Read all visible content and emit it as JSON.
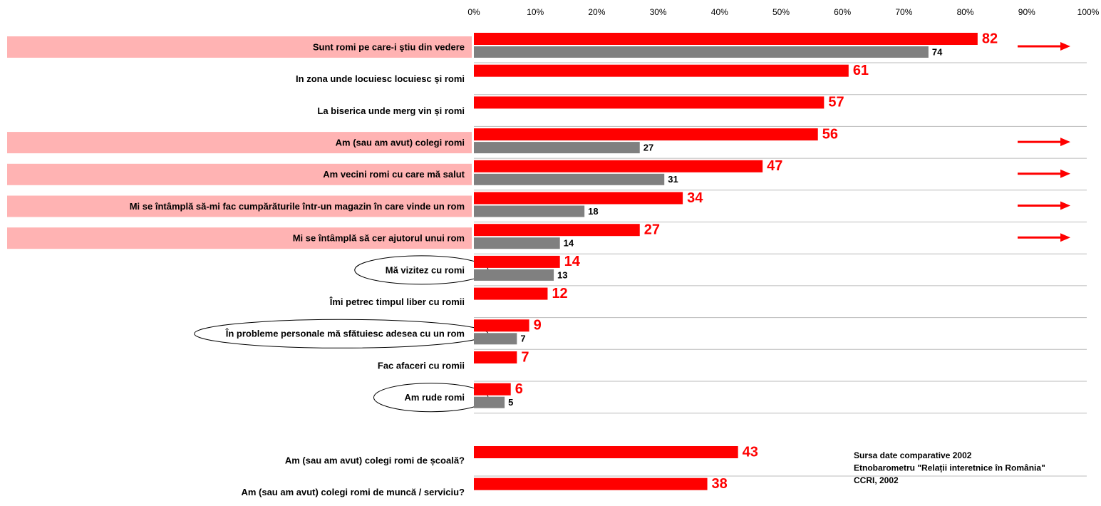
{
  "chart_data": [
    {
      "type": "bar",
      "categories": [
        "Sunt romi pe care-i ştiu din vedere",
        "In zona unde locuiesc locuiesc și romi",
        "La biserica unde merg vin și romi",
        "Am (sau am avut) colegi romi",
        "Am vecini romi cu care mă salut",
        "Mi se întâmplă să-mi fac cumpărăturile într-un magazin în care vinde un rom",
        "Mi se întâmplă să cer ajutorul unui rom",
        "Mă vizitez cu romi",
        "Îmi petrec timpul liber cu romii",
        "În probleme personale mă sfătuiesc adesea cu un rom",
        "Fac afaceri cu romii",
        "Am rude romi"
      ],
      "series": [
        {
          "color": "#ff0000",
          "values": [
            82,
            61,
            57,
            56,
            47,
            34,
            27,
            14,
            12,
            9,
            7,
            6
          ]
        },
        {
          "color": "#808080",
          "values": [
            74,
            null,
            null,
            27,
            31,
            18,
            14,
            13,
            null,
            7,
            null,
            5
          ]
        }
      ],
      "highlight": [
        true,
        false,
        false,
        true,
        true,
        true,
        true,
        false,
        false,
        false,
        false,
        false
      ],
      "circled": [
        false,
        false,
        false,
        false,
        false,
        false,
        false,
        true,
        false,
        true,
        false,
        true
      ],
      "xlim": [
        0,
        100
      ],
      "xticks": [
        {
          "value": 0,
          "label": "0%"
        },
        {
          "value": 10,
          "label": "10%"
        },
        {
          "value": 20,
          "label": "20%"
        },
        {
          "value": 30,
          "label": "30%"
        },
        {
          "value": 40,
          "label": "40%"
        },
        {
          "value": 50,
          "label": "50%"
        },
        {
          "value": 60,
          "label": "60%"
        },
        {
          "value": 70,
          "label": "70%"
        },
        {
          "value": 80,
          "label": "80%"
        },
        {
          "value": 90,
          "label": "90%"
        },
        {
          "value": 100,
          "label": "100%"
        }
      ]
    },
    {
      "type": "bar",
      "categories": [
        "Am (sau am avut) colegi romi de școală?",
        "Am (sau am avut) colegi romi de muncă / serviciu?"
      ],
      "series": [
        {
          "color": "#ff0000",
          "values": [
            43,
            38
          ]
        }
      ],
      "xlim": [
        0,
        100
      ],
      "annotations": [
        "Sursa date comparative 2002",
        "Etnobarometru \"Relații interetnice în România\"",
        "CCRI, 2002"
      ]
    }
  ]
}
